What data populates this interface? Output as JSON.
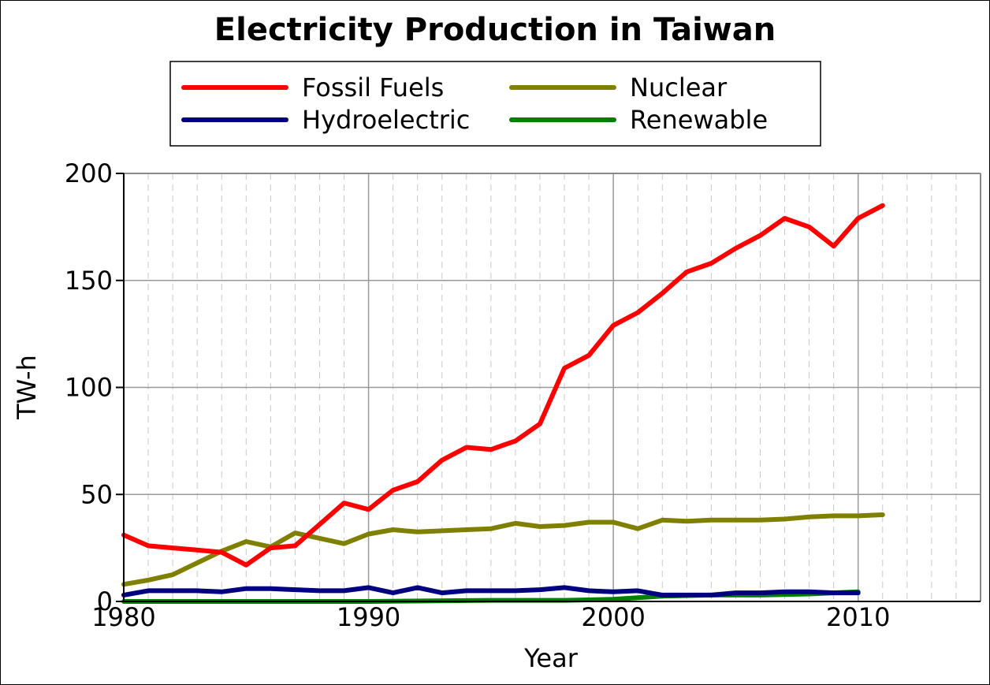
{
  "chart_data": {
    "type": "line",
    "title": "Electricity Production in Taiwan",
    "xlabel": "Year",
    "ylabel": "TW-h",
    "xlim": [
      1980,
      2015
    ],
    "ylim": [
      0,
      200
    ],
    "x_ticks": [
      "1980",
      "1990",
      "2000",
      "2010"
    ],
    "y_ticks": [
      "0",
      "50",
      "100",
      "150",
      "200"
    ],
    "grid": true,
    "legend_position": "top",
    "series": [
      {
        "name": "Fossil Fuels",
        "color": "#ff0000",
        "x": [
          1980,
          1981,
          1982,
          1983,
          1984,
          1985,
          1986,
          1987,
          1988,
          1989,
          1990,
          1991,
          1992,
          1993,
          1994,
          1995,
          1996,
          1997,
          1998,
          1999,
          2000,
          2001,
          2002,
          2003,
          2004,
          2005,
          2006,
          2007,
          2008,
          2009,
          2010,
          2011
        ],
        "values": [
          31,
          26,
          25,
          24,
          23,
          17,
          25,
          26,
          36,
          46,
          43,
          52,
          56,
          66,
          72,
          71,
          75,
          83,
          109,
          115,
          129,
          135,
          144,
          154,
          158,
          165,
          171,
          179,
          175,
          166,
          179,
          185
        ]
      },
      {
        "name": "Hydroelectric",
        "color": "#000080",
        "x": [
          1980,
          1981,
          1982,
          1983,
          1984,
          1985,
          1986,
          1987,
          1988,
          1989,
          1990,
          1991,
          1992,
          1993,
          1994,
          1995,
          1996,
          1997,
          1998,
          1999,
          2000,
          2001,
          2002,
          2003,
          2004,
          2005,
          2006,
          2007,
          2008,
          2009,
          2010
        ],
        "values": [
          3,
          5,
          5,
          5,
          4.5,
          6,
          6,
          5.5,
          5,
          5,
          6.5,
          4,
          6.5,
          4,
          5,
          5,
          5,
          5.5,
          6.5,
          5,
          4.5,
          5,
          3,
          3,
          3,
          4,
          4,
          4.5,
          4.5,
          4,
          4
        ]
      },
      {
        "name": "Nuclear",
        "color": "#808000",
        "x": [
          1980,
          1981,
          1982,
          1983,
          1984,
          1985,
          1986,
          1987,
          1988,
          1989,
          1990,
          1991,
          1992,
          1993,
          1994,
          1995,
          1996,
          1997,
          1998,
          1999,
          2000,
          2001,
          2002,
          2003,
          2004,
          2005,
          2006,
          2007,
          2008,
          2009,
          2010,
          2011
        ],
        "values": [
          8,
          10,
          12.5,
          18,
          23.5,
          28,
          25.5,
          32,
          29.5,
          27,
          31.5,
          33.5,
          32.5,
          33,
          33.5,
          34,
          36.5,
          35,
          35.5,
          37,
          37,
          34,
          38,
          37.5,
          38,
          38,
          38,
          38.5,
          39.5,
          40,
          40,
          40.5
        ]
      },
      {
        "name": "Renewable",
        "color": "#008000",
        "x": [
          1980,
          1985,
          1990,
          1995,
          1998,
          2000,
          2002,
          2004,
          2006,
          2008,
          2009,
          2010
        ],
        "values": [
          0,
          0,
          0,
          0.5,
          0.5,
          1,
          2.5,
          3,
          3,
          3.5,
          4,
          4.5
        ]
      }
    ]
  }
}
